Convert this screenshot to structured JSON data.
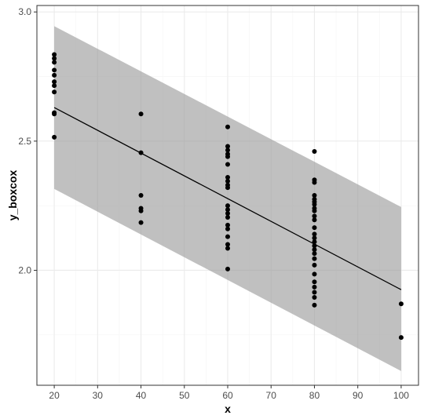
{
  "chart_data": {
    "type": "scatter",
    "title": "",
    "xlabel": "x",
    "ylabel": "y_boxcox",
    "xlim": [
      16,
      104
    ],
    "ylim": [
      1.555,
      3.025
    ],
    "x_ticks": [
      20,
      30,
      40,
      50,
      60,
      70,
      80,
      90,
      100
    ],
    "x_tick_labels": [
      "20",
      "30",
      "40",
      "50",
      "60",
      "70",
      "80",
      "90",
      "100"
    ],
    "y_ticks": [
      2.0,
      2.5,
      3.0
    ],
    "y_tick_labels": [
      "2.0",
      "2.5",
      "3.0"
    ],
    "grid": true,
    "legend": "none",
    "colors": {
      "panel": "#ffffff",
      "grid_major": "#ebebeb",
      "grid_minor": "#f5f5f5",
      "border": "#333333",
      "band": "#999999",
      "points": "#000000",
      "line": "#000000"
    },
    "fit_line": {
      "x": [
        20,
        100
      ],
      "y": [
        2.63,
        1.925
      ]
    },
    "prediction_band": {
      "x": [
        20,
        100
      ],
      "upper": [
        2.945,
        2.245
      ],
      "lower": [
        2.315,
        1.61
      ]
    },
    "points": [
      {
        "x": 20,
        "y": 2.835
      },
      {
        "x": 20,
        "y": 2.82
      },
      {
        "x": 20,
        "y": 2.805
      },
      {
        "x": 20,
        "y": 2.775
      },
      {
        "x": 20,
        "y": 2.755
      },
      {
        "x": 20,
        "y": 2.73
      },
      {
        "x": 20,
        "y": 2.715
      },
      {
        "x": 20,
        "y": 2.69
      },
      {
        "x": 20,
        "y": 2.61
      },
      {
        "x": 20,
        "y": 2.605
      },
      {
        "x": 20,
        "y": 2.515
      },
      {
        "x": 40,
        "y": 2.605
      },
      {
        "x": 40,
        "y": 2.455
      },
      {
        "x": 40,
        "y": 2.29
      },
      {
        "x": 40,
        "y": 2.24
      },
      {
        "x": 40,
        "y": 2.23
      },
      {
        "x": 40,
        "y": 2.185
      },
      {
        "x": 60,
        "y": 2.555
      },
      {
        "x": 60,
        "y": 2.48
      },
      {
        "x": 60,
        "y": 2.465
      },
      {
        "x": 60,
        "y": 2.45
      },
      {
        "x": 60,
        "y": 2.44
      },
      {
        "x": 60,
        "y": 2.41
      },
      {
        "x": 60,
        "y": 2.36
      },
      {
        "x": 60,
        "y": 2.345
      },
      {
        "x": 60,
        "y": 2.33
      },
      {
        "x": 60,
        "y": 2.32
      },
      {
        "x": 60,
        "y": 2.25
      },
      {
        "x": 60,
        "y": 2.235
      },
      {
        "x": 60,
        "y": 2.22
      },
      {
        "x": 60,
        "y": 2.205
      },
      {
        "x": 60,
        "y": 2.175
      },
      {
        "x": 60,
        "y": 2.16
      },
      {
        "x": 60,
        "y": 2.13
      },
      {
        "x": 60,
        "y": 2.1
      },
      {
        "x": 60,
        "y": 2.085
      },
      {
        "x": 60,
        "y": 2.005
      },
      {
        "x": 80,
        "y": 2.46
      },
      {
        "x": 80,
        "y": 2.35
      },
      {
        "x": 80,
        "y": 2.34
      },
      {
        "x": 80,
        "y": 2.29
      },
      {
        "x": 80,
        "y": 2.275
      },
      {
        "x": 80,
        "y": 2.265
      },
      {
        "x": 80,
        "y": 2.255
      },
      {
        "x": 80,
        "y": 2.24
      },
      {
        "x": 80,
        "y": 2.23
      },
      {
        "x": 80,
        "y": 2.21
      },
      {
        "x": 80,
        "y": 2.195
      },
      {
        "x": 80,
        "y": 2.165
      },
      {
        "x": 80,
        "y": 2.14
      },
      {
        "x": 80,
        "y": 2.125
      },
      {
        "x": 80,
        "y": 2.11
      },
      {
        "x": 80,
        "y": 2.095
      },
      {
        "x": 80,
        "y": 2.08
      },
      {
        "x": 80,
        "y": 2.065
      },
      {
        "x": 80,
        "y": 2.045
      },
      {
        "x": 80,
        "y": 2.02
      },
      {
        "x": 80,
        "y": 1.985
      },
      {
        "x": 80,
        "y": 1.955
      },
      {
        "x": 80,
        "y": 1.935
      },
      {
        "x": 80,
        "y": 1.915
      },
      {
        "x": 80,
        "y": 1.895
      },
      {
        "x": 80,
        "y": 1.865
      },
      {
        "x": 100,
        "y": 1.87
      },
      {
        "x": 100,
        "y": 1.74
      }
    ]
  }
}
